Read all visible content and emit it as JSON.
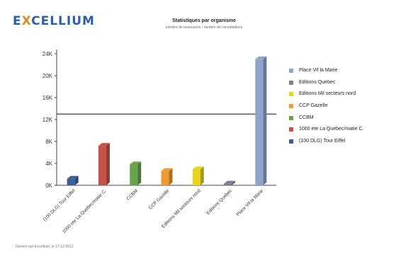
{
  "header": {
    "logo_pre": "E",
    "logo_x": "X",
    "logo_post": "CELLIUM",
    "title": "Statistiques par organisme",
    "subtitle": "nombre de ressources / nombre de consultations"
  },
  "footer": "Genere par Excellium, le 17-12-2012",
  "colors": {
    "axis": "#444444",
    "reference_line": "#111111"
  },
  "chart_data": {
    "type": "bar",
    "title": "Statistiques par organisme",
    "xlabel": "",
    "ylabel": "",
    "ylim": [
      0,
      24000
    ],
    "yticks": [
      0,
      4000,
      8000,
      12000,
      16000,
      20000,
      24000
    ],
    "ytick_labels": [
      "0K",
      "4K",
      "8K",
      "12K",
      "16K",
      "20K",
      "24K"
    ],
    "reference_line": 13000,
    "grid": false,
    "legend_position": "right",
    "categories": [
      "(100 DLG) Tour Eiffel",
      "1000 ete La Quebec/matie C.",
      "CCBM",
      "CCP Gazelle",
      "Editions Mil secteurs nord",
      "Editions Quebec",
      "Place Vif la Marie"
    ],
    "values": [
      1200,
      7200,
      3800,
      2600,
      2900,
      300,
      23000
    ],
    "colors": [
      "#3f5e9c",
      "#c8504a",
      "#6aa34e",
      "#ee9b35",
      "#e5d620",
      "#807a92",
      "#8ea4cc"
    ],
    "legend": [
      {
        "label": "Place Vif la Marie",
        "color": "#8ea4cc"
      },
      {
        "label": "Editions Quebec",
        "color": "#807a92"
      },
      {
        "label": "Editions Mil secteurs nord",
        "color": "#e5d620"
      },
      {
        "label": "CCP Gazelle",
        "color": "#ee9b35"
      },
      {
        "label": "CCBM",
        "color": "#6aa34e"
      },
      {
        "label": "1000 ete La Quebec/matie C.",
        "color": "#c8504a"
      },
      {
        "label": "(100 DLG) Tour Eiffel",
        "color": "#3f5e9c"
      }
    ]
  }
}
